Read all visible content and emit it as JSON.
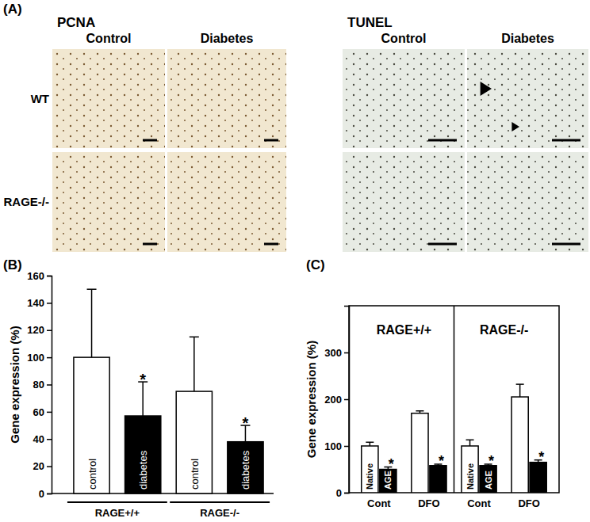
{
  "panel_a": {
    "label": "(A)",
    "stains": [
      "PCNA",
      "TUNEL"
    ],
    "conditions": [
      "Control",
      "Diabetes"
    ],
    "genotypes": [
      "WT",
      "RAGE-/-"
    ]
  },
  "chart_data": [
    {
      "type": "bar",
      "title": "(B)",
      "y_label": "Gene expression (%)",
      "categories": [
        "control",
        "diabetes",
        "control",
        "diabetes"
      ],
      "groups": [
        "RAGE+/+",
        "RAGE-/-"
      ],
      "values": [
        100,
        57,
        75,
        38
      ],
      "errors": [
        50,
        25,
        40,
        12
      ],
      "annotations": [
        null,
        "*",
        null,
        "*"
      ],
      "colors": [
        "#ffffff",
        "#000000",
        "#ffffff",
        "#000000"
      ],
      "ylim": [
        0,
        160
      ],
      "yticks": [
        0,
        20,
        40,
        60,
        80,
        100,
        120,
        140,
        160
      ],
      "grid": false
    },
    {
      "type": "bar",
      "title": "(C)",
      "y_label": "Gene expression (%)",
      "categories": [
        "Cont",
        "DFO",
        "Cont",
        "DFO"
      ],
      "groups": [
        "RAGE+/+",
        "RAGE-/-"
      ],
      "series": [
        {
          "color": "#ffffff",
          "bar_labels": [
            "Native",
            null,
            "Native",
            null
          ],
          "values": [
            100,
            170,
            100,
            205
          ],
          "errors": [
            8,
            5,
            13,
            27
          ]
        },
        {
          "color": "#000000",
          "bar_labels": [
            "AGE",
            null,
            "AGE",
            null
          ],
          "values": [
            50,
            58,
            58,
            65
          ],
          "errors": [
            5,
            3,
            3,
            5
          ],
          "annotations": [
            "*",
            "*",
            "*",
            "*"
          ]
        }
      ],
      "ylim": [
        0,
        400
      ],
      "yticks": [
        0,
        100,
        200,
        300
      ],
      "grid": false
    }
  ]
}
